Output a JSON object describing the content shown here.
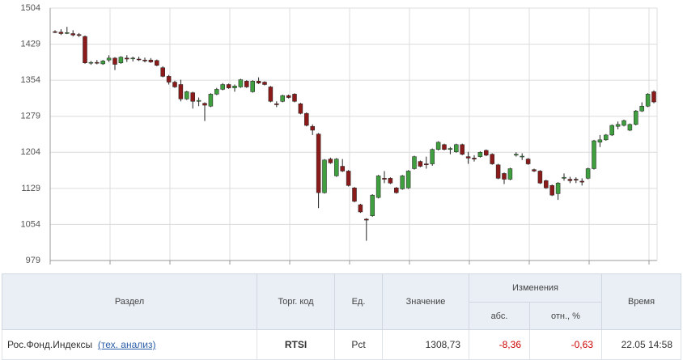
{
  "chart_data": {
    "type": "candlestick",
    "ylim": [
      979,
      1504
    ],
    "yticks": [
      979,
      1054,
      1129,
      1204,
      1279,
      1354,
      1429,
      1504
    ],
    "grid": true,
    "up_color": "#3f9f3f",
    "down_color": "#8b1a1a",
    "open": [
      1455,
      1454,
      1452,
      1451,
      1449,
      1445,
      1390,
      1391,
      1388,
      1396,
      1400,
      1390,
      1400,
      1399,
      1398,
      1396,
      1396,
      1395,
      1380,
      1362,
      1350,
      1345,
      1315,
      1328,
      1310,
      1306,
      1300,
      1325,
      1335,
      1345,
      1338,
      1340,
      1352,
      1330,
      1352,
      1350,
      1340,
      1305,
      1310,
      1322,
      1325,
      1305,
      1285,
      1258,
      1242,
      1120,
      1190,
      1155,
      1175,
      1165,
      1130,
      1095,
      1065,
      1072,
      1110,
      1150,
      1150,
      1130,
      1128,
      1130,
      1170,
      1185,
      1180,
      1180,
      1210,
      1220,
      1210,
      1205,
      1220,
      1195,
      1192,
      1195,
      1208,
      1200,
      1178,
      1160,
      1148,
      1198,
      1195,
      1190,
      1168,
      1165,
      1145,
      1135,
      1118,
      1150,
      1148,
      1148,
      1144,
      1150,
      1170,
      1225,
      1230,
      1240,
      1258,
      1260,
      1250,
      1262,
      1290,
      1300,
      1330
    ],
    "high": [
      1458,
      1460,
      1465,
      1458,
      1452,
      1447,
      1394,
      1396,
      1396,
      1406,
      1402,
      1404,
      1406,
      1403,
      1403,
      1401,
      1400,
      1397,
      1383,
      1365,
      1353,
      1355,
      1332,
      1330,
      1318,
      1308,
      1327,
      1338,
      1348,
      1347,
      1345,
      1357,
      1354,
      1354,
      1360,
      1352,
      1342,
      1310,
      1324,
      1324,
      1327,
      1307,
      1287,
      1262,
      1244,
      1190,
      1193,
      1192,
      1190,
      1167,
      1132,
      1097,
      1067,
      1117,
      1157,
      1165,
      1152,
      1132,
      1157,
      1167,
      1197,
      1187,
      1195,
      1212,
      1227,
      1222,
      1215,
      1222,
      1222,
      1205,
      1198,
      1206,
      1210,
      1202,
      1180,
      1162,
      1172,
      1204,
      1202,
      1192,
      1170,
      1167,
      1147,
      1137,
      1142,
      1160,
      1153,
      1152,
      1150,
      1172,
      1230,
      1240,
      1242,
      1262,
      1268,
      1272,
      1264,
      1292,
      1308,
      1327,
      1333
    ],
    "low": [
      1452,
      1448,
      1450,
      1445,
      1444,
      1388,
      1386,
      1387,
      1386,
      1392,
      1375,
      1388,
      1392,
      1393,
      1394,
      1391,
      1390,
      1383,
      1360,
      1345,
      1338,
      1310,
      1313,
      1295,
      1300,
      1269,
      1298,
      1323,
      1333,
      1336,
      1330,
      1338,
      1338,
      1328,
      1346,
      1343,
      1308,
      1298,
      1308,
      1316,
      1308,
      1283,
      1258,
      1240,
      1088,
      1118,
      1180,
      1153,
      1163,
      1133,
      1100,
      1078,
      1020,
      1070,
      1108,
      1140,
      1138,
      1118,
      1126,
      1128,
      1168,
      1173,
      1170,
      1176,
      1208,
      1208,
      1200,
      1203,
      1198,
      1180,
      1185,
      1193,
      1196,
      1178,
      1148,
      1138,
      1146,
      1195,
      1188,
      1178,
      1163,
      1138,
      1128,
      1113,
      1105,
      1145,
      1140,
      1140,
      1135,
      1148,
      1168,
      1215,
      1228,
      1238,
      1252,
      1258,
      1248,
      1260,
      1288,
      1298,
      1306
    ],
    "close": [
      1454,
      1451,
      1453,
      1448,
      1447,
      1390,
      1391,
      1390,
      1394,
      1400,
      1387,
      1402,
      1398,
      1400,
      1397,
      1394,
      1392,
      1385,
      1362,
      1350,
      1340,
      1315,
      1330,
      1310,
      1312,
      1302,
      1325,
      1335,
      1345,
      1338,
      1342,
      1355,
      1340,
      1352,
      1348,
      1345,
      1310,
      1303,
      1322,
      1318,
      1310,
      1285,
      1260,
      1250,
      1120,
      1188,
      1182,
      1190,
      1165,
      1135,
      1102,
      1080,
      1063,
      1115,
      1155,
      1148,
      1140,
      1120,
      1155,
      1165,
      1195,
      1175,
      1178,
      1210,
      1225,
      1210,
      1212,
      1220,
      1200,
      1192,
      1190,
      1204,
      1198,
      1180,
      1150,
      1148,
      1170,
      1200,
      1196,
      1180,
      1165,
      1140,
      1130,
      1115,
      1140,
      1152,
      1145,
      1146,
      1142,
      1170,
      1228,
      1230,
      1240,
      1260,
      1262,
      1270,
      1262,
      1290,
      1300,
      1325,
      1308.73
    ]
  },
  "table": {
    "headers": [
      "Раздел",
      "Торг. код",
      "Ед.",
      "Значение",
      "Изменения",
      "Время"
    ],
    "subheaders": [
      "абс.",
      "отн., %"
    ],
    "row": {
      "section": "Рос.Фонд.Индексы",
      "link": "(тех. анализ)",
      "code": "RTSI",
      "unit": "Pct",
      "value": "1308,73",
      "abs": "-8,36",
      "rel": "-0,63",
      "time": "22.05 14:58"
    }
  }
}
